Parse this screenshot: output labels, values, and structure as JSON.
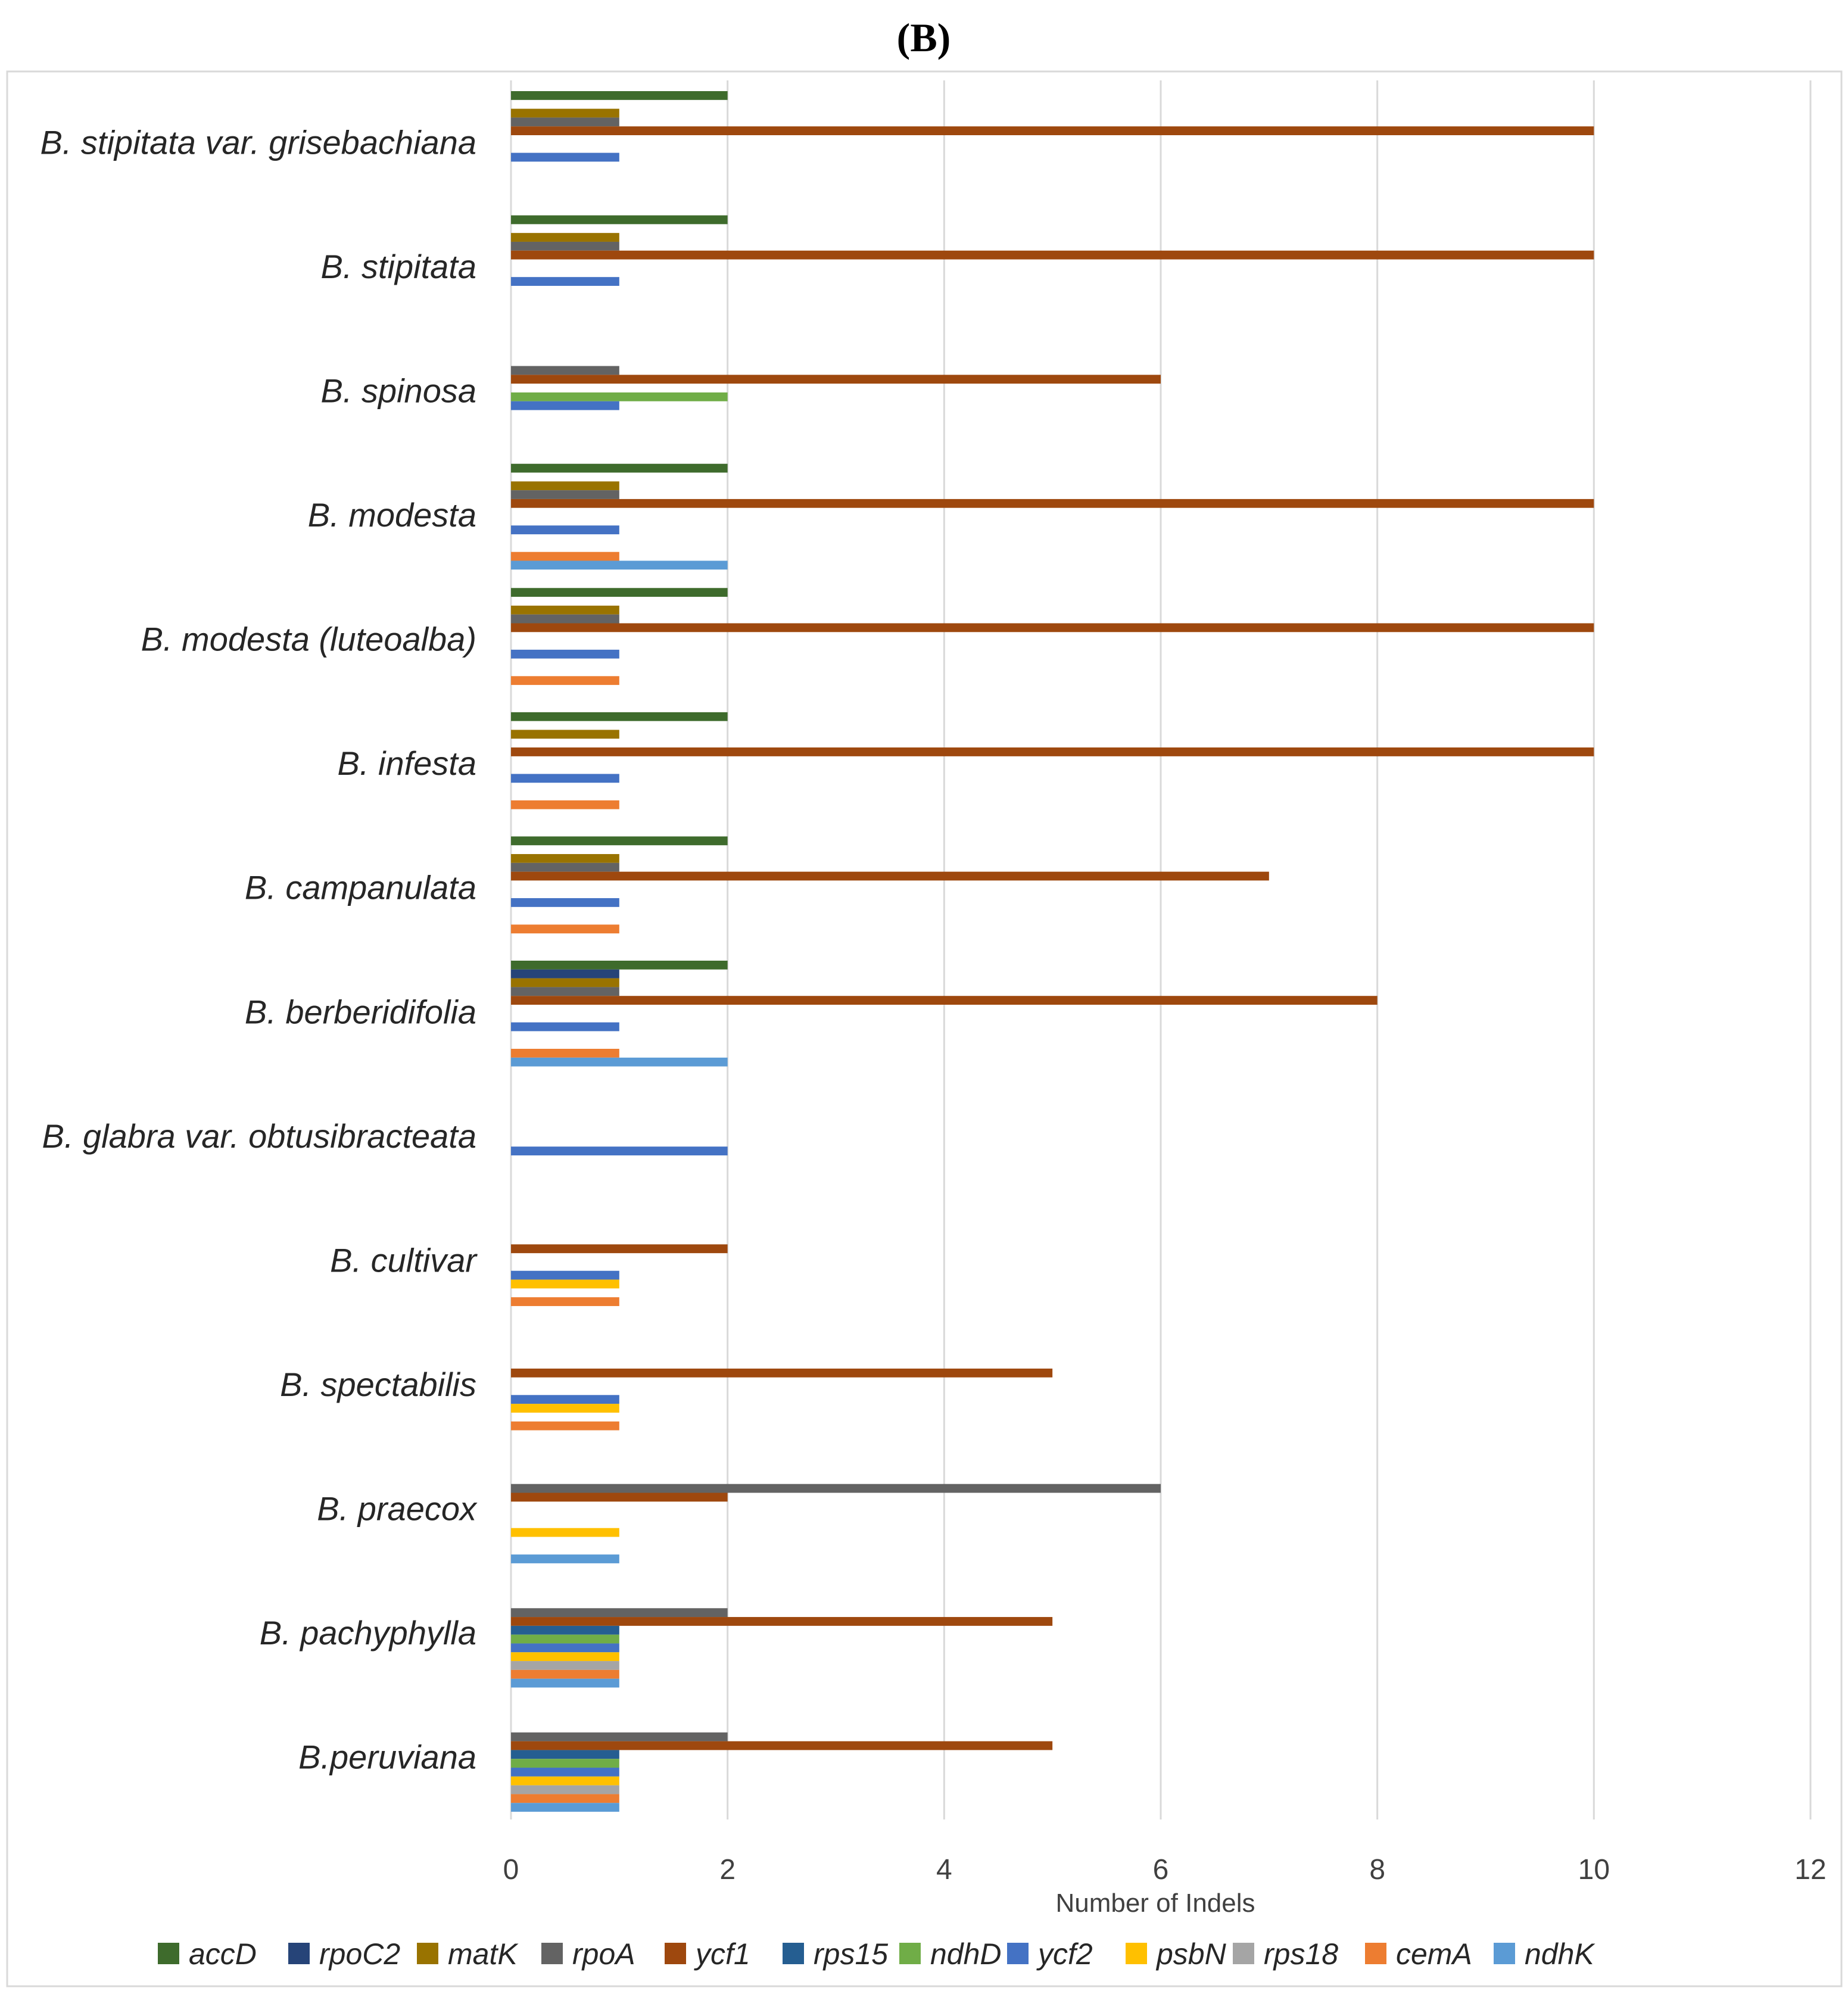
{
  "panel_label": "(B)",
  "chart_data": {
    "type": "bar",
    "orientation": "horizontal",
    "title": "",
    "xlabel": "Number of Indels",
    "ylabel": "",
    "xlim": [
      0,
      12
    ],
    "xticks": [
      "0",
      "2",
      "4",
      "6",
      "8",
      "10",
      "12"
    ],
    "grid": true,
    "legend_position": "bottom",
    "categories": [
      "B. stipitata var. grisebachiana",
      "B. stipitata",
      "B. spinosa",
      "B. modesta",
      "B. modesta (luteoalba)",
      "B. infesta",
      "B. campanulata",
      "B. berberidifolia",
      "B. glabra var. obtusibracteata",
      "B. cultivar",
      "B. spectabilis",
      "B. praecox",
      "B. pachyphylla",
      "B.peruviana"
    ],
    "series": [
      {
        "name": "accD",
        "color": "#3e6b2c",
        "values": [
          2,
          2,
          0,
          2,
          2,
          2,
          2,
          2,
          0,
          0,
          0,
          0,
          0,
          0
        ]
      },
      {
        "name": "rpoC2",
        "color": "#264478",
        "values": [
          0,
          0,
          0,
          0,
          0,
          0,
          0,
          1,
          0,
          0,
          0,
          0,
          0,
          0
        ]
      },
      {
        "name": "matK",
        "color": "#997300",
        "values": [
          1,
          1,
          0,
          1,
          1,
          1,
          1,
          1,
          0,
          0,
          0,
          0,
          0,
          0
        ]
      },
      {
        "name": "rpoA",
        "color": "#636363",
        "values": [
          1,
          1,
          1,
          1,
          1,
          0,
          1,
          1,
          0,
          0,
          0,
          6,
          2,
          2
        ]
      },
      {
        "name": "ycf1",
        "color": "#9e480e",
        "values": [
          10,
          10,
          6,
          10,
          10,
          10,
          7,
          8,
          0,
          2,
          5,
          2,
          5,
          5
        ]
      },
      {
        "name": "rps15",
        "color": "#255e91",
        "values": [
          0,
          0,
          0,
          0,
          0,
          0,
          0,
          0,
          0,
          0,
          0,
          0,
          1,
          1
        ]
      },
      {
        "name": "ndhD",
        "color": "#70ad47",
        "values": [
          0,
          0,
          2,
          0,
          0,
          0,
          0,
          0,
          0,
          0,
          0,
          0,
          1,
          1
        ]
      },
      {
        "name": "ycf2",
        "color": "#4472c4",
        "values": [
          1,
          1,
          1,
          1,
          1,
          1,
          1,
          1,
          2,
          1,
          1,
          0,
          1,
          1
        ]
      },
      {
        "name": "psbN",
        "color": "#ffc000",
        "values": [
          0,
          0,
          0,
          0,
          0,
          0,
          0,
          0,
          0,
          1,
          1,
          1,
          1,
          1
        ]
      },
      {
        "name": "rps18",
        "color": "#a5a5a5",
        "values": [
          0,
          0,
          0,
          0,
          0,
          0,
          0,
          0,
          0,
          0,
          0,
          0,
          1,
          1
        ]
      },
      {
        "name": "cemA",
        "color": "#ed7d31",
        "values": [
          0,
          0,
          0,
          1,
          1,
          1,
          1,
          1,
          0,
          1,
          1,
          0,
          1,
          1
        ]
      },
      {
        "name": "ndhK",
        "color": "#5b9bd5",
        "values": [
          0,
          0,
          0,
          2,
          0,
          0,
          0,
          2,
          0,
          0,
          0,
          1,
          1,
          1
        ]
      }
    ]
  }
}
